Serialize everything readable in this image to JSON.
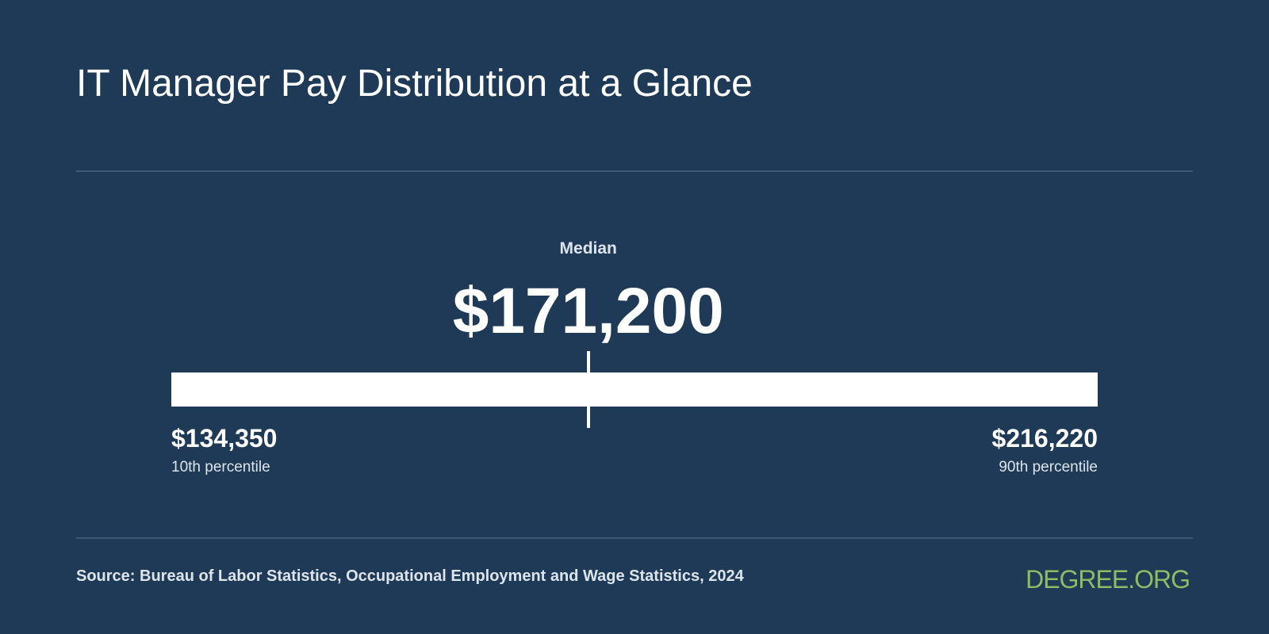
{
  "title": "IT Manager Pay Distribution at a Glance",
  "chart_data": {
    "type": "range",
    "min": {
      "value": 134350,
      "display": "$134,350",
      "label": "10th percentile"
    },
    "median": {
      "value": 171200,
      "display": "$171,200",
      "label": "Median"
    },
    "max": {
      "value": 216220,
      "display": "$216,220",
      "label": "90th percentile"
    }
  },
  "source": "Source: Bureau of Labor Statistics, Occupational Employment and Wage Statistics, 2024",
  "logo_text": "DEGREE.ORG",
  "colors": {
    "background": "#1e3a56",
    "bar": "#ffffff",
    "logo": "#8dbb66"
  }
}
